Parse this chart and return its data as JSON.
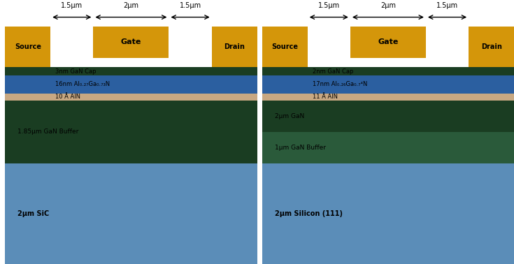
{
  "fig_width": 7.35,
  "fig_height": 3.78,
  "background": "#ffffff",
  "colors": {
    "gold": "#D4960A",
    "dark_green": "#1A3D22",
    "blue_algan": "#2B5FA0",
    "tan_aln": "#C8A882",
    "light_blue_sic": "#5B8DB8",
    "white": "#ffffff",
    "medium_green": "#2A5A3A"
  },
  "transistorA": {
    "label_cap": "3nm GaN Cap",
    "label_algan": "16nm Al₀.₂₇Ga₀.₇₃N",
    "label_aln": "10 Å AlN",
    "label_buffer": "1.85μm GaN Buffer",
    "label_substrate": "2μm SiC",
    "label_gate": "Gate",
    "label_source": "Source",
    "label_drain": "Drain",
    "dim1": "1.5μm",
    "dim2": "2μm",
    "dim3": "1.5μm"
  },
  "transistorB": {
    "label_cap": "2nm GaN Cap",
    "label_algan": "17nm Al₀.₂₆Ga₀.₇⁴N",
    "label_aln": "11 Å AlN",
    "label_gan": "2μm GaN",
    "label_buffer": "1μm GaN Buffer",
    "label_substrate": "2μm Silicon (111)",
    "label_gate": "Gate",
    "label_source": "Source",
    "label_drain": "Drain",
    "dim1": "1.5μm",
    "dim2": "2μm",
    "dim3": "1.5μm"
  }
}
